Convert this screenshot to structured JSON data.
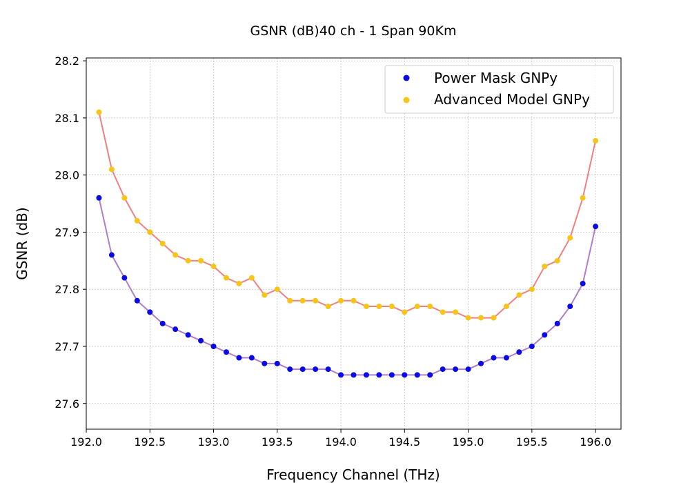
{
  "chart_data": {
    "type": "line",
    "title": "GSNR (dB)40 ch - 1 Span 90Km",
    "xlabel": "Frequency Channel (THz)",
    "ylabel": "GSNR (dB)",
    "xlim": [
      192.0,
      196.2
    ],
    "ylim": [
      27.555,
      28.205
    ],
    "xticks": [
      "192.0",
      "192.5",
      "193.0",
      "193.5",
      "194.0",
      "194.5",
      "195.0",
      "195.5",
      "196.0"
    ],
    "xtick_values": [
      192.0,
      192.5,
      193.0,
      193.5,
      194.0,
      194.5,
      195.0,
      195.5,
      196.0
    ],
    "yticks": [
      "27.6",
      "27.7",
      "27.8",
      "27.9",
      "28.0",
      "28.1",
      "28.2"
    ],
    "ytick_values": [
      27.6,
      27.7,
      27.8,
      27.9,
      28.0,
      28.1,
      28.2
    ],
    "grid": true,
    "legend_position": "top-right",
    "x": [
      192.1,
      192.2,
      192.3,
      192.4,
      192.5,
      192.6,
      192.7,
      192.8,
      192.9,
      193.0,
      193.1,
      193.2,
      193.3,
      193.4,
      193.5,
      193.6,
      193.7,
      193.8,
      193.9,
      194.0,
      194.1,
      194.2,
      194.3,
      194.4,
      194.5,
      194.6,
      194.7,
      194.8,
      194.9,
      195.0,
      195.1,
      195.2,
      195.3,
      195.4,
      195.5,
      195.6,
      195.7,
      195.8,
      195.9,
      196.0
    ],
    "series": [
      {
        "name": "Power Mask GNPy",
        "marker_color": "#0a0ae6",
        "line_color": "#b07cc6",
        "values": [
          27.96,
          27.86,
          27.82,
          27.78,
          27.76,
          27.74,
          27.73,
          27.72,
          27.71,
          27.7,
          27.69,
          27.68,
          27.68,
          27.67,
          27.67,
          27.66,
          27.66,
          27.66,
          27.66,
          27.65,
          27.65,
          27.65,
          27.65,
          27.65,
          27.65,
          27.65,
          27.65,
          27.66,
          27.66,
          27.66,
          27.67,
          27.68,
          27.68,
          27.69,
          27.7,
          27.72,
          27.74,
          27.77,
          27.81,
          27.91
        ]
      },
      {
        "name": "Advanced Model GNPy",
        "marker_color": "#f5c518",
        "line_color": "#f08080",
        "values": [
          28.11,
          28.01,
          27.96,
          27.92,
          27.9,
          27.88,
          27.86,
          27.85,
          27.85,
          27.84,
          27.82,
          27.81,
          27.82,
          27.79,
          27.8,
          27.78,
          27.78,
          27.78,
          27.77,
          27.78,
          27.78,
          27.77,
          27.77,
          27.77,
          27.76,
          27.77,
          27.77,
          27.76,
          27.76,
          27.75,
          27.75,
          27.75,
          27.77,
          27.79,
          27.8,
          27.84,
          27.85,
          27.89,
          27.96,
          28.06
        ]
      }
    ]
  }
}
